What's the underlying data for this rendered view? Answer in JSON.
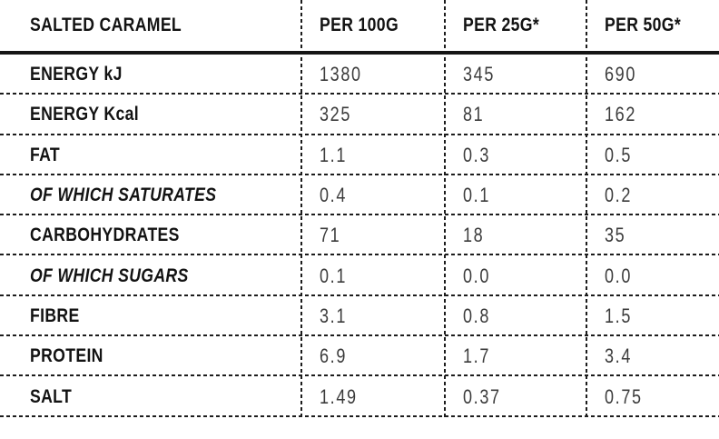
{
  "table": {
    "title": "SALTED CARAMEL",
    "columns": [
      "PER 100G",
      "PER 25G*",
      "PER 50G*"
    ],
    "rows": [
      {
        "label": "ENERGY kJ",
        "style": "normal",
        "values": [
          "1380",
          "345",
          "690"
        ]
      },
      {
        "label": "ENERGY Kcal",
        "style": "normal",
        "values": [
          "325",
          "81",
          "162"
        ]
      },
      {
        "label": "FAT",
        "style": "normal",
        "values": [
          "1.1",
          "0.3",
          "0.5"
        ]
      },
      {
        "label": "OF WHICH SATURATES",
        "style": "italic",
        "values": [
          "0.4",
          "0.1",
          "0.2"
        ]
      },
      {
        "label": "CARBOHYDRATES",
        "style": "normal",
        "values": [
          "71",
          "18",
          "35"
        ]
      },
      {
        "label": "OF WHICH SUGARS",
        "style": "italic",
        "values": [
          "0.1",
          "0.0",
          "0.0"
        ]
      },
      {
        "label": "FIBRE",
        "style": "normal",
        "values": [
          "3.1",
          "0.8",
          "1.5"
        ]
      },
      {
        "label": "PROTEIN",
        "style": "normal",
        "values": [
          "6.9",
          "1.7",
          "3.4"
        ]
      },
      {
        "label": "SALT",
        "style": "normal",
        "values": [
          "1.49",
          "0.37",
          "0.75"
        ]
      }
    ],
    "colors": {
      "background": "#ffffff",
      "header_text": "#131313",
      "value_text": "#3b3b3b",
      "rule": "#1c1c1c"
    }
  }
}
